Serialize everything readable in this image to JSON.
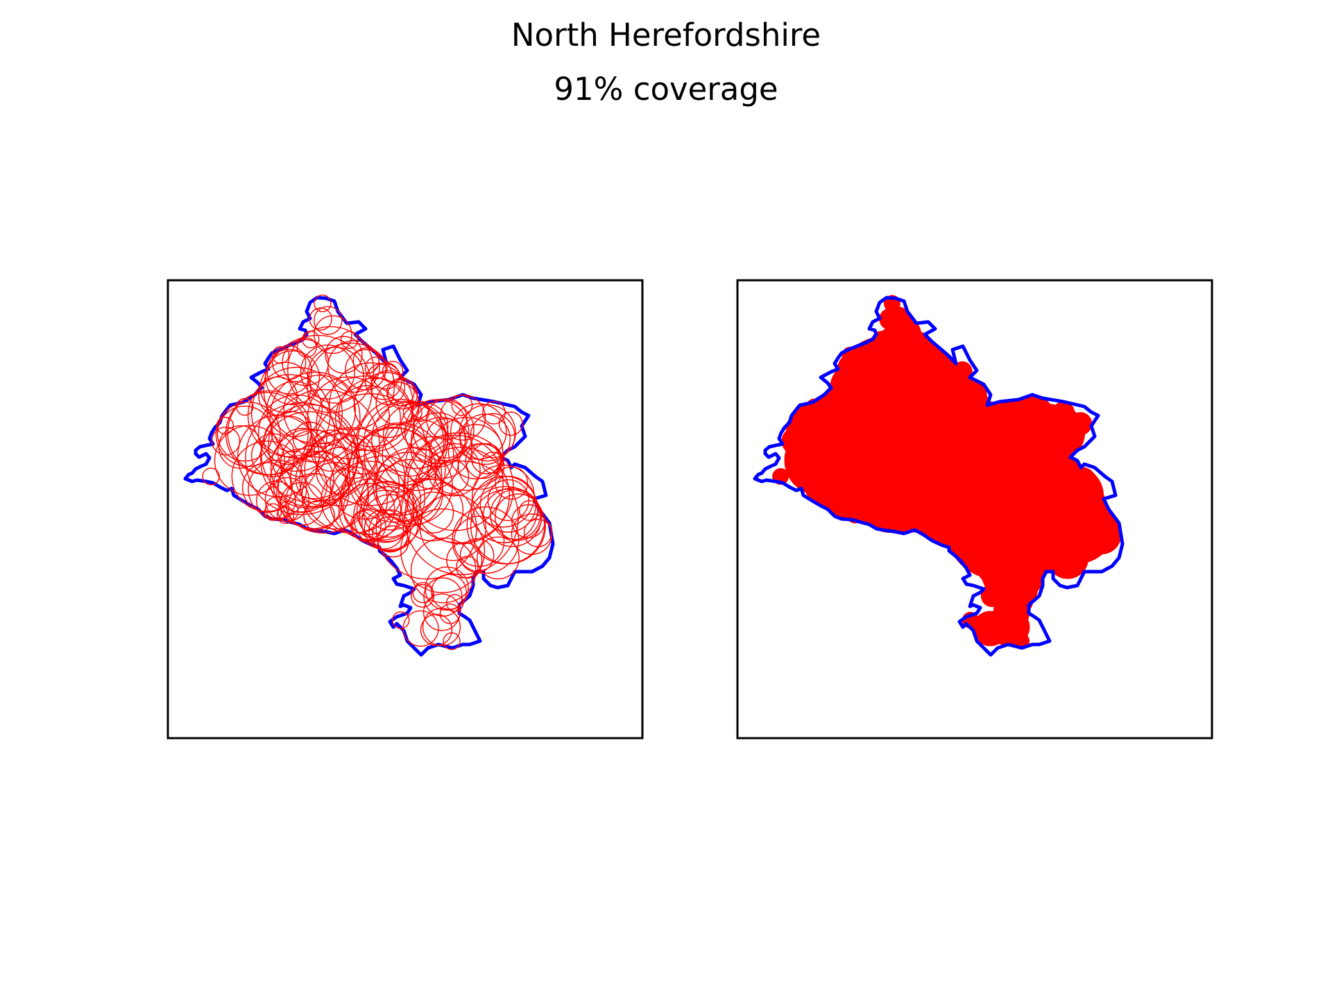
{
  "figure": {
    "title": "North Herefordshire",
    "subtitle": "91% coverage"
  },
  "colors": {
    "boundary": "#0000ff",
    "circles": "#ff0000",
    "fill": "#ff0000",
    "frame": "#000000",
    "background": "#ffffff"
  },
  "panels": [
    {
      "name": "circle-outlines-panel",
      "style": "outline"
    },
    {
      "name": "coverage-fill-panel",
      "style": "filled"
    }
  ]
}
